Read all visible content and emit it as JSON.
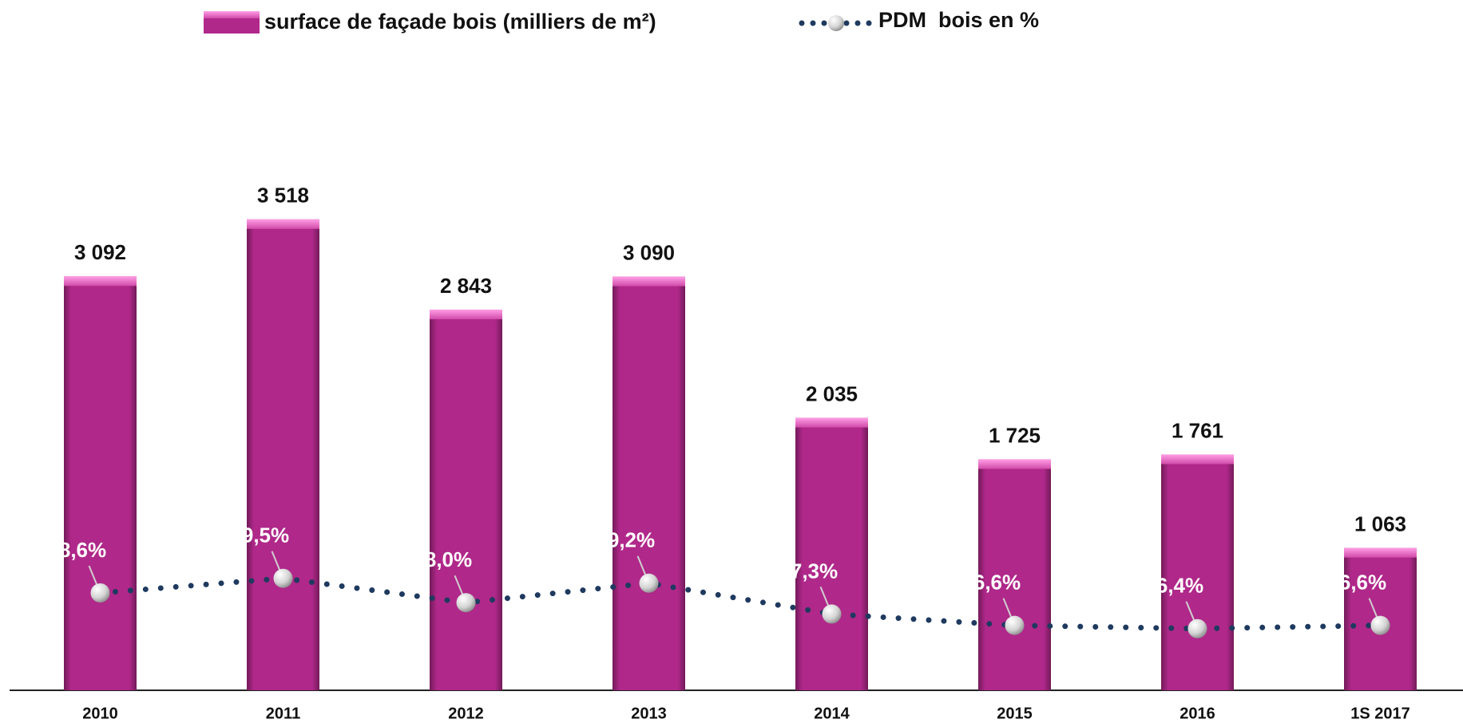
{
  "chart_data": {
    "type": "bar",
    "categories": [
      "2010",
      "2011",
      "2012",
      "2013",
      "2014",
      "2015",
      "2016",
      "1S 2017"
    ],
    "series": [
      {
        "name": "surface de façade bois (milliers de m²)",
        "type": "bar",
        "color": "#b0288a",
        "values": [
          3092,
          3518,
          2843,
          3090,
          2035,
          1725,
          1761,
          1063
        ],
        "value_labels": [
          "3 092",
          "3 518",
          "2 843",
          "3 090",
          "2 035",
          "1 725",
          "1 761",
          "1 063"
        ]
      },
      {
        "name": "PDM  bois en %",
        "type": "line",
        "axis": "y2",
        "color": "#1f3a5f",
        "values": [
          8.6,
          9.5,
          8.0,
          9.2,
          7.3,
          6.6,
          6.4,
          6.6
        ],
        "value_labels": [
          "8,6%",
          "9,5%",
          "8,0%",
          "9,2%",
          "7,3%",
          "6,6%",
          "6,4%",
          "6,6%"
        ]
      }
    ],
    "ylim": [
      0,
      4000
    ],
    "y2lim": [
      2.6,
      35.6
    ],
    "legend": "top"
  }
}
